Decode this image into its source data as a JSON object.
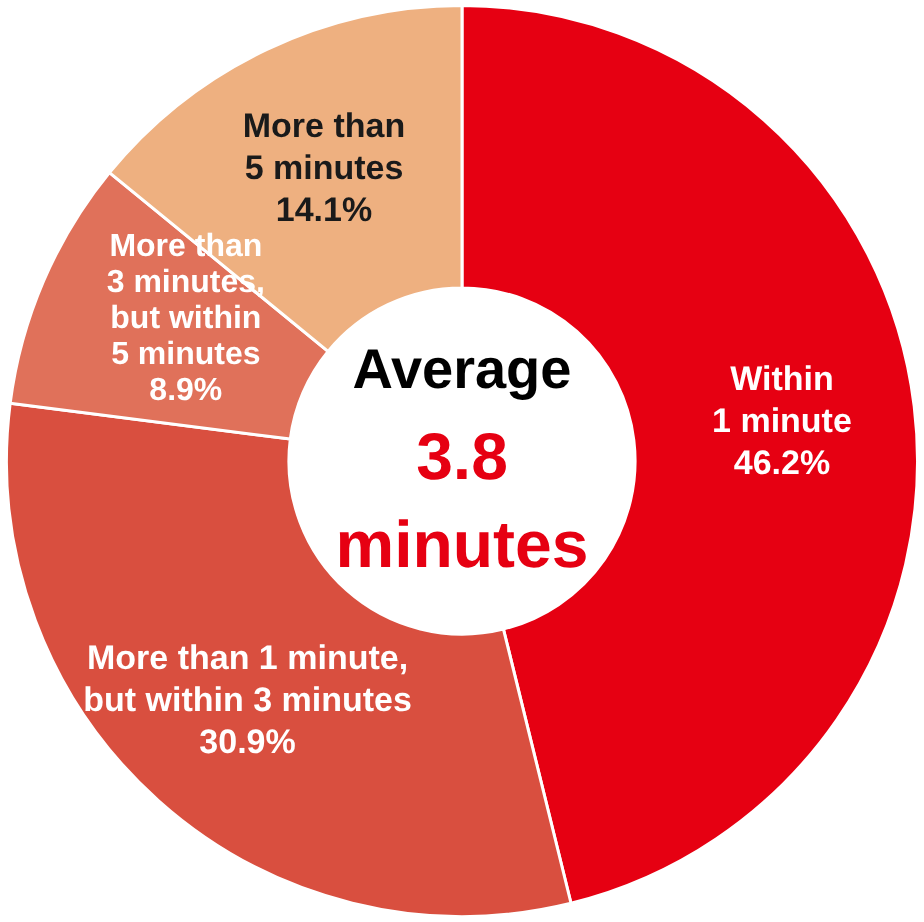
{
  "chart_data": {
    "type": "donut",
    "categories": [
      "Within\n1 minute",
      "More than 1 minute,\nbut within 3 minutes",
      "More than\n3 minutes,\nbut within\n5 minutes",
      "More than\n5 minutes"
    ],
    "values": [
      46.2,
      30.9,
      8.9,
      14.1
    ],
    "value_labels": [
      "46.2%",
      "30.9%",
      "8.9%",
      "14.1%"
    ],
    "colors": [
      "#e60012",
      "#d94f3f",
      "#e0715a",
      "#eeb080"
    ],
    "legend": false,
    "annotations": [
      "Average",
      "3.8\nminutes"
    ]
  }
}
